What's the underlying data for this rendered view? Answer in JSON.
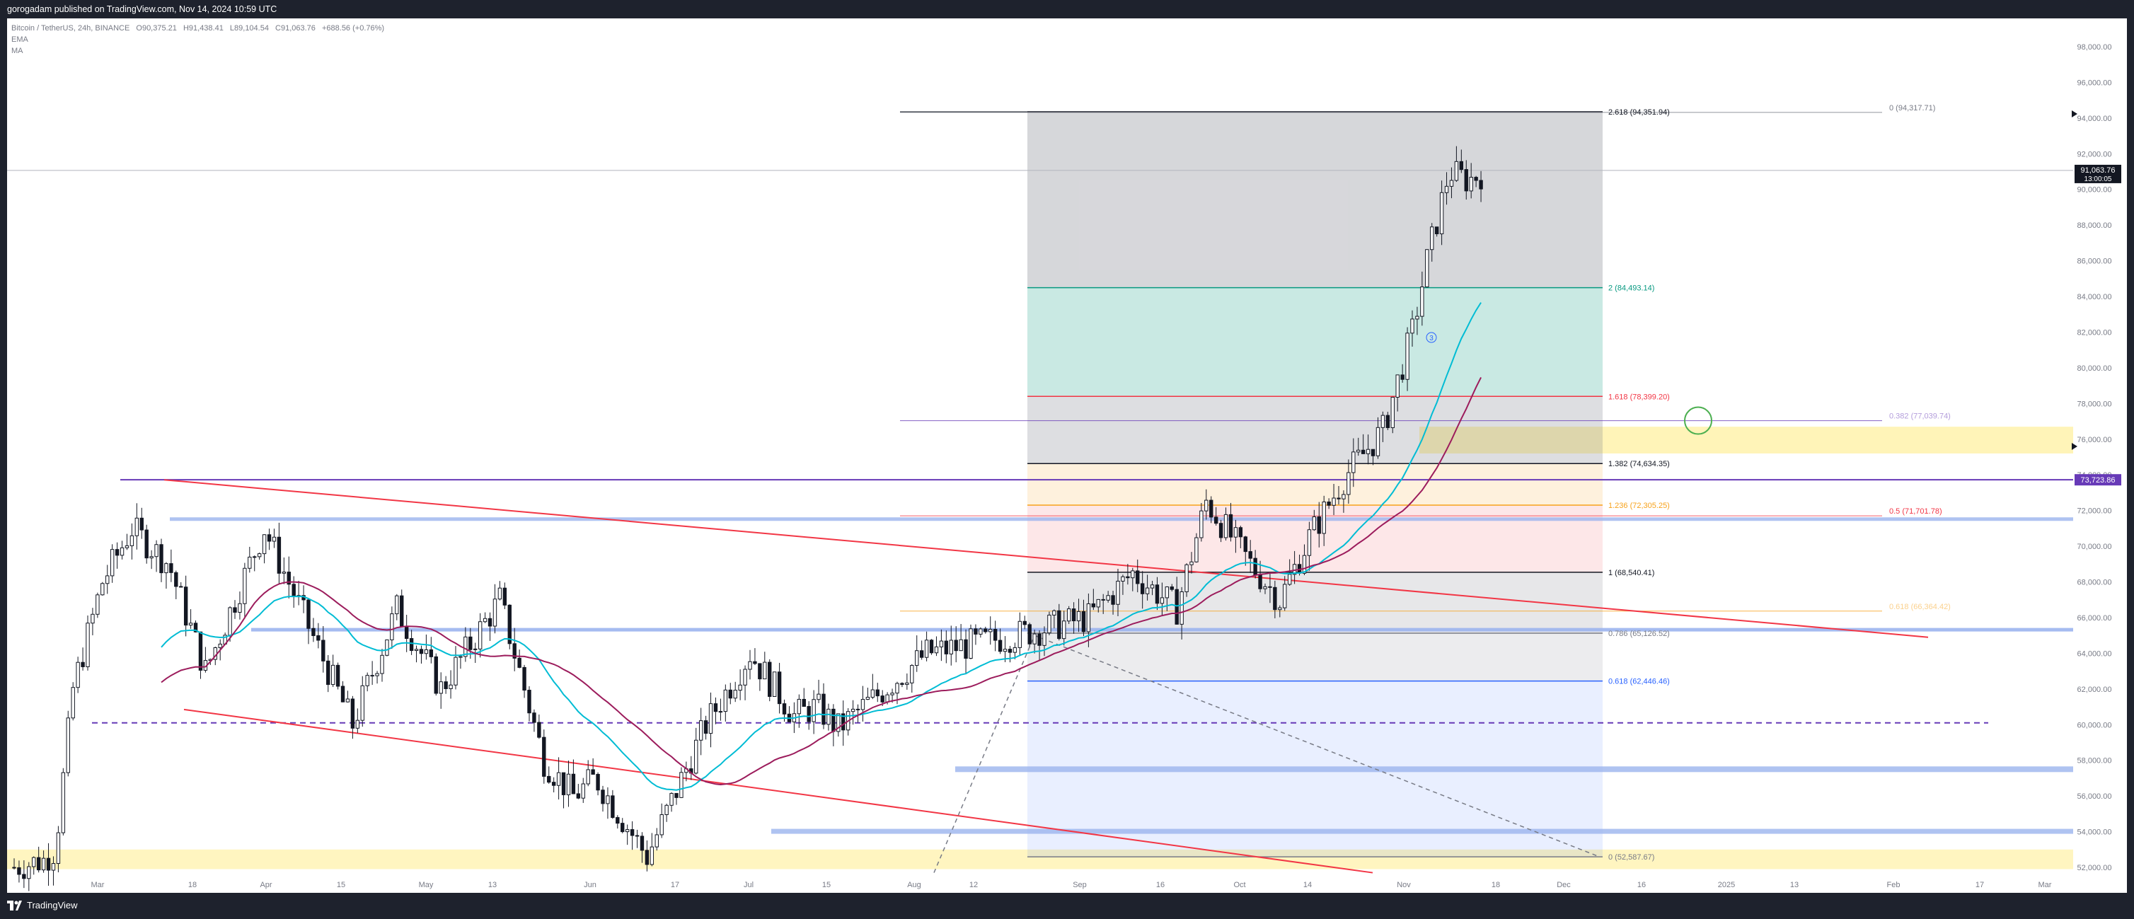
{
  "header": {
    "published_by": "gorogadam published on TradingView.com, Nov 14, 2024 10:59 UTC"
  },
  "legend": {
    "symbol": "Bitcoin / TetherUS, 24h, BINANCE",
    "open": "O90,375.21",
    "high": "H91,438.41",
    "low": "L89,104.54",
    "close": "C91,063.76",
    "change": "+688.56 (+0.76%)",
    "indicator_1": "EMA",
    "indicator_2": "MA"
  },
  "price_tag": {
    "price": "91,063.76",
    "countdown": "13:00:05",
    "level_label": "73,723.86"
  },
  "footer": {
    "brand": "TradingView"
  },
  "colors": {
    "background_frame": "#1e222d",
    "fib_red": "#f23645",
    "fib_green": "#089981",
    "fib_orange": "#f7a21b",
    "fib_blue": "#2962ff",
    "ema": "#00bcd4",
    "ma": "#9c1c5c",
    "channel": "#f23645",
    "horizontal_purple": "#673ab7",
    "support_band": "#9bb4ee",
    "highlight_zone": "#fff3b0"
  },
  "chart_data": {
    "type": "candlestick",
    "symbol": "Bitcoin / TetherUS",
    "interval": "24h",
    "exchange": "BINANCE",
    "ylim": [
      51200,
      99600
    ],
    "y_ticks": [
      "52,000.00",
      "54,000.00",
      "56,000.00",
      "58,000.00",
      "60,000.00",
      "62,000.00",
      "64,000.00",
      "66,000.00",
      "68,000.00",
      "70,000.00",
      "72,000.00",
      "74,000.00",
      "76,000.00",
      "78,000.00",
      "80,000.00",
      "82,000.00",
      "84,000.00",
      "86,000.00",
      "88,000.00",
      "90,000.00",
      "92,000.00",
      "94,000.00",
      "96,000.00",
      "98,000.00"
    ],
    "x_ticks": [
      "Mar",
      "18",
      "Apr",
      "15",
      "May",
      "13",
      "Jun",
      "17",
      "Jul",
      "15",
      "Aug",
      "12",
      "Sep",
      "16",
      "Oct",
      "14",
      "Nov",
      "18",
      "Dec",
      "16",
      "2025",
      "13",
      "Feb",
      "17",
      "Mar"
    ],
    "fib_extension": [
      {
        "label": "2.618 (94,351.94)",
        "value": 94351.94
      },
      {
        "label": "2 (84,493.14)",
        "value": 84493.14
      },
      {
        "label": "1.618 (78,399.20)",
        "value": 78399.2
      },
      {
        "label": "1.382 (74,634.35)",
        "value": 74634.35
      },
      {
        "label": "1.236 (72,305.25)",
        "value": 72305.25
      },
      {
        "label": "1 (68,540.41)",
        "value": 68540.41
      },
      {
        "label": "0.786 (65,126.52)",
        "value": 65126.52
      },
      {
        "label": "0.618 (62,446.46)",
        "value": 62446.46
      },
      {
        "label": "0 (52,587.67)",
        "value": 52587.67
      }
    ],
    "fib_retracement": [
      {
        "label": "0 (94,317.71)",
        "value": 94317.71
      },
      {
        "label": "0.382 (77,039.74)",
        "value": 77039.74
      },
      {
        "label": "0.5 (71,701.78)",
        "value": 71701.78
      },
      {
        "label": "0.618 (66,364.42)",
        "value": 66364.42
      }
    ],
    "horizontal_levels": [
      73723.86,
      71500,
      65300,
      60100,
      57500,
      54000
    ],
    "last_price": 91063.76,
    "wave_label": "3"
  }
}
